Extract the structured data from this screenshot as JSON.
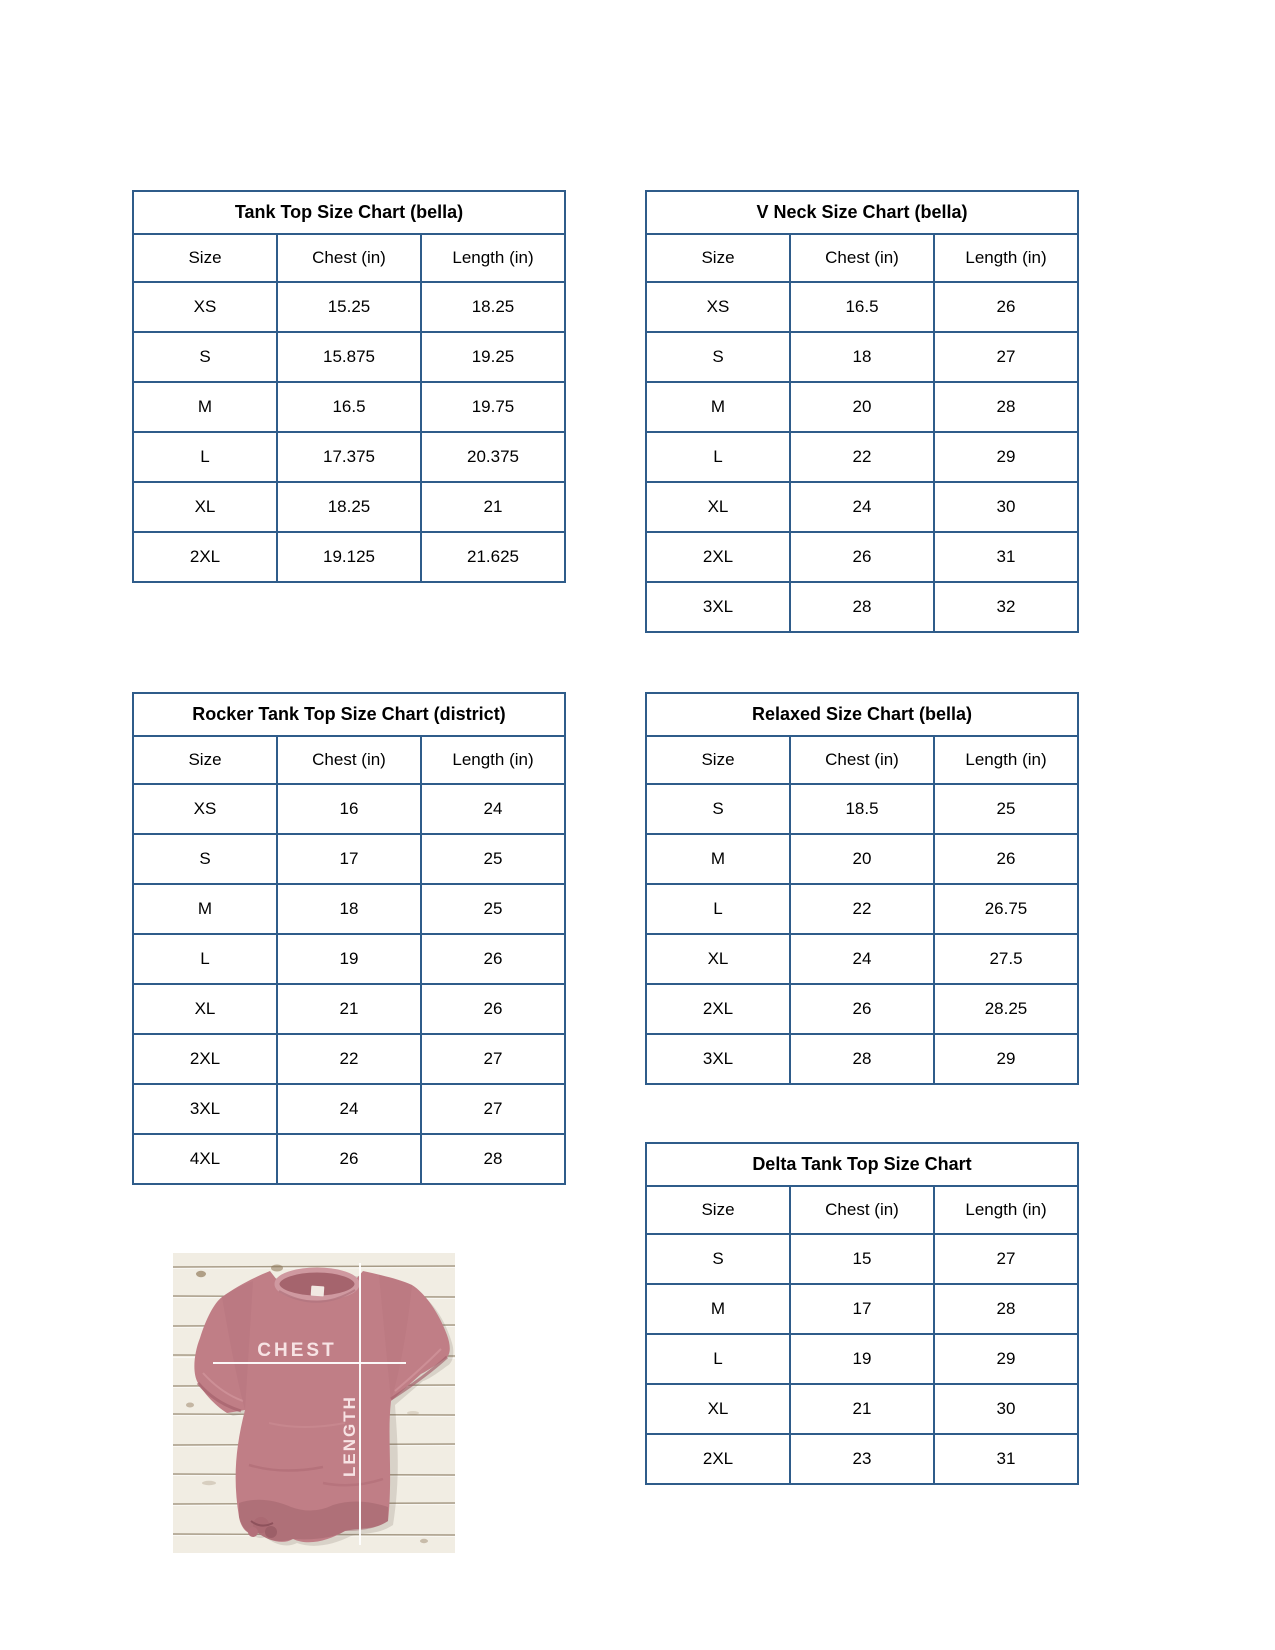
{
  "page": {
    "background": "#ffffff"
  },
  "colors": {
    "table_border": "#2f5c8a",
    "text": "#000000",
    "shirt": "#c07e86",
    "shirt_shadow": "#a5626c",
    "wood": "#f1ede3",
    "measure_line": "#ffffff"
  },
  "tables": [
    {
      "title": "Tank Top Size Chart  (bella)",
      "headers": [
        "Size",
        "Chest (in)",
        "Length (in)"
      ],
      "rows": [
        [
          "XS",
          "15.25",
          "18.25"
        ],
        [
          "S",
          "15.875",
          "19.25"
        ],
        [
          "M",
          "16.5",
          "19.75"
        ],
        [
          "L",
          "17.375",
          "20.375"
        ],
        [
          "XL",
          "18.25",
          "21"
        ],
        [
          "2XL",
          "19.125",
          "21.625"
        ]
      ]
    },
    {
      "title": "V Neck Size Chart  (bella)",
      "headers": [
        "Size",
        "Chest (in)",
        "Length (in)"
      ],
      "rows": [
        [
          "XS",
          "16.5",
          "26"
        ],
        [
          "S",
          "18",
          "27"
        ],
        [
          "M",
          "20",
          "28"
        ],
        [
          "L",
          "22",
          "29"
        ],
        [
          "XL",
          "24",
          "30"
        ],
        [
          "2XL",
          "26",
          "31"
        ],
        [
          "3XL",
          "28",
          "32"
        ]
      ]
    },
    {
      "title": "Rocker Tank Top Size Chart (district)",
      "headers": [
        "Size",
        "Chest (in)",
        "Length (in)"
      ],
      "rows": [
        [
          "XS",
          "16",
          "24"
        ],
        [
          "S",
          "17",
          "25"
        ],
        [
          "M",
          "18",
          "25"
        ],
        [
          "L",
          "19",
          "26"
        ],
        [
          "XL",
          "21",
          "26"
        ],
        [
          "2XL",
          "22",
          "27"
        ],
        [
          "3XL",
          "24",
          "27"
        ],
        [
          "4XL",
          "26",
          "28"
        ]
      ]
    },
    {
      "title": "Relaxed Size Chart (bella)",
      "headers": [
        "Size",
        "Chest (in)",
        "Length (in)"
      ],
      "rows": [
        [
          "S",
          "18.5",
          "25"
        ],
        [
          "M",
          "20",
          "26"
        ],
        [
          "L",
          "22",
          "26.75"
        ],
        [
          "XL",
          "24",
          "27.5"
        ],
        [
          "2XL",
          "26",
          "28.25"
        ],
        [
          "3XL",
          "28",
          "29"
        ]
      ]
    },
    {
      "title": "Delta Tank Top Size Chart",
      "headers": [
        "Size",
        "Chest (in)",
        "Length (in)"
      ],
      "rows": [
        [
          "S",
          "15",
          "27"
        ],
        [
          "M",
          "17",
          "28"
        ],
        [
          "L",
          "19",
          "29"
        ],
        [
          "XL",
          "21",
          "30"
        ],
        [
          "2XL",
          "23",
          "31"
        ]
      ]
    }
  ],
  "photo_labels": {
    "chest": "CHEST",
    "length": "LENGTH"
  }
}
